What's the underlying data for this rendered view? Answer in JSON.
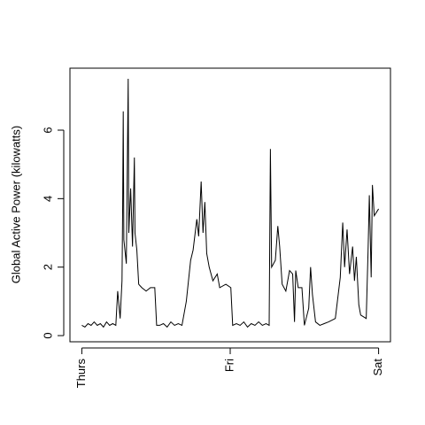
{
  "chart_data": {
    "type": "line",
    "ylabel": "Global Active Power (kilowatts)",
    "x": [
      0,
      0.5,
      1,
      1.5,
      2,
      2.5,
      3,
      3.5,
      4,
      4.5,
      5,
      5.5,
      5.8,
      6.2,
      6.5,
      6.6,
      6.7,
      6.8,
      7.2,
      7.5,
      7.6,
      7.9,
      8.2,
      8.5,
      8.6,
      8.9,
      9.2,
      9.7,
      10.4,
      11.1,
      11.8,
      12.1,
      12.6,
      13.2,
      13.8,
      14.4,
      15,
      15.6,
      16.2,
      16.9,
      17.6,
      18,
      18.6,
      18.9,
      19.3,
      19.6,
      19.9,
      20.2,
      20.6,
      21.2,
      21.9,
      22.3,
      23.3,
      24.1,
      24.4,
      25,
      25.6,
      26.2,
      26.8,
      27.4,
      28,
      28.6,
      29.2,
      29.8,
      30.3,
      30.5,
      30.7,
      31.3,
      31.7,
      32,
      32.4,
      33,
      33.6,
      34.1,
      34.4,
      34.6,
      35,
      35.6,
      36,
      36.7,
      37,
      37.3,
      37.8,
      38.5,
      39.2,
      39.9,
      41,
      41.8,
      42.2,
      42.5,
      42.9,
      43.3,
      43.8,
      44.1,
      44.4,
      44.8,
      45.1,
      46,
      46.3,
      46.5,
      46.8,
      47,
      47.3,
      48
    ],
    "series": [
      {
        "name": "Global Active Power",
        "color": "#000000",
        "values": [
          0.3,
          0.25,
          0.35,
          0.3,
          0.4,
          0.3,
          0.35,
          0.25,
          0.4,
          0.3,
          0.35,
          0.3,
          1.3,
          0.5,
          1.6,
          3.6,
          6.55,
          2.8,
          2.1,
          7.5,
          3,
          4.3,
          2.6,
          5.2,
          3,
          2.5,
          1.5,
          1.4,
          1.3,
          1.4,
          1.4,
          0.3,
          0.3,
          0.35,
          0.25,
          0.4,
          0.3,
          0.35,
          0.3,
          1,
          2.2,
          2.5,
          3.4,
          2.9,
          4.5,
          3,
          3.9,
          2.4,
          2,
          1.6,
          1.8,
          1.4,
          1.5,
          1.4,
          0.3,
          0.35,
          0.3,
          0.4,
          0.25,
          0.35,
          0.3,
          0.4,
          0.3,
          0.35,
          0.3,
          5.45,
          2,
          2.2,
          3.2,
          2.6,
          1.5,
          1.3,
          1.9,
          1.8,
          0.4,
          1.9,
          1.4,
          1.4,
          0.3,
          0.8,
          2,
          1.2,
          0.4,
          0.3,
          0.35,
          0.4,
          0.5,
          1.7,
          3.3,
          2,
          3.1,
          1.8,
          2.6,
          1.6,
          2.3,
          0.9,
          0.6,
          0.5,
          2.5,
          4.1,
          1.7,
          4.4,
          3.5,
          3.7
        ]
      }
    ],
    "xlim": [
      -1.92,
      49.92
    ],
    "xticks": [
      {
        "value": 0,
        "label": "Thurs"
      },
      {
        "value": 24,
        "label": "Fri"
      },
      {
        "value": 48,
        "label": "Sat"
      }
    ],
    "ylim": [
      -0.18,
      7.81
    ],
    "yticks": [
      0,
      2,
      4,
      6
    ]
  }
}
